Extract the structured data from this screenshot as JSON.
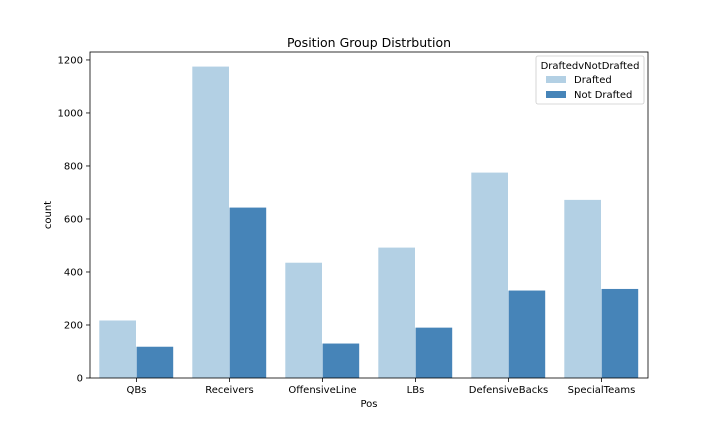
{
  "chart_data": {
    "type": "bar",
    "title": "Position Group Distrbution",
    "xlabel": "Pos",
    "ylabel": "count",
    "ylim": [
      0,
      1230
    ],
    "yticks": [
      0,
      200,
      400,
      600,
      800,
      1000,
      1200
    ],
    "categories": [
      "QBs",
      "Receivers",
      "OffensiveLine",
      "LBs",
      "DefensiveBacks",
      "SpecialTeams"
    ],
    "series": [
      {
        "name": "Drafted",
        "color": "#b3d0e4",
        "values": [
          217,
          1175,
          435,
          492,
          775,
          672
        ]
      },
      {
        "name": "Not Drafted",
        "color": "#4684b8",
        "values": [
          118,
          643,
          130,
          190,
          330,
          336
        ]
      }
    ],
    "legend": {
      "title": "DraftedvNotDrafted",
      "position": "top-right"
    },
    "grid": false
  }
}
